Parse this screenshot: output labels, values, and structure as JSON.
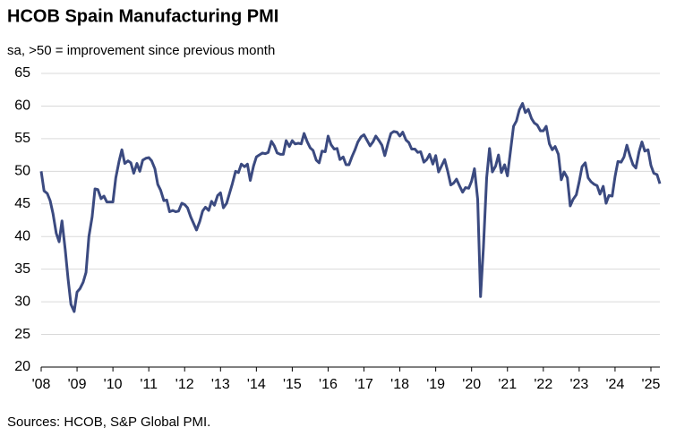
{
  "chart_data": {
    "type": "line",
    "title": "HCOB Spain Manufacturing PMI",
    "subtitle": "sa, >50 = improvement since previous month",
    "source": "Sources: HCOB, S&P Global PMI.",
    "color": "#3b4a80",
    "grid": true,
    "ylim": [
      20,
      65
    ],
    "yticks": [
      20,
      25,
      30,
      35,
      40,
      45,
      50,
      55,
      60,
      65
    ],
    "xlim": [
      2008,
      2025.25
    ],
    "xticks": [
      {
        "value": 2008,
        "label": "'08"
      },
      {
        "value": 2009,
        "label": "'09"
      },
      {
        "value": 2010,
        "label": "'10"
      },
      {
        "value": 2011,
        "label": "'11"
      },
      {
        "value": 2012,
        "label": "'12"
      },
      {
        "value": 2013,
        "label": "'13"
      },
      {
        "value": 2014,
        "label": "'14"
      },
      {
        "value": 2015,
        "label": "'15"
      },
      {
        "value": 2016,
        "label": "'16"
      },
      {
        "value": 2017,
        "label": "'17"
      },
      {
        "value": 2018,
        "label": "'18"
      },
      {
        "value": 2019,
        "label": "'19"
      },
      {
        "value": 2020,
        "label": "'20"
      },
      {
        "value": 2021,
        "label": "'21"
      },
      {
        "value": 2022,
        "label": "'22"
      },
      {
        "value": 2023,
        "label": "'23"
      },
      {
        "value": 2024,
        "label": "'24"
      },
      {
        "value": 2025,
        "label": "'25"
      }
    ],
    "x": [
      2008,
      2008.08,
      2008.17,
      2008.25,
      2008.33,
      2008.42,
      2008.5,
      2008.58,
      2008.67,
      2008.75,
      2008.83,
      2008.92,
      2009,
      2009.08,
      2009.17,
      2009.25,
      2009.33,
      2009.42,
      2009.5,
      2009.58,
      2009.67,
      2009.75,
      2009.83,
      2009.92,
      2010,
      2010.08,
      2010.17,
      2010.25,
      2010.33,
      2010.42,
      2010.5,
      2010.58,
      2010.67,
      2010.75,
      2010.83,
      2010.92,
      2011,
      2011.08,
      2011.17,
      2011.25,
      2011.33,
      2011.42,
      2011.5,
      2011.58,
      2011.67,
      2011.75,
      2011.83,
      2011.92,
      2012,
      2012.08,
      2012.17,
      2012.25,
      2012.33,
      2012.42,
      2012.5,
      2012.58,
      2012.67,
      2012.75,
      2012.83,
      2012.92,
      2013,
      2013.08,
      2013.17,
      2013.25,
      2013.33,
      2013.42,
      2013.5,
      2013.58,
      2013.67,
      2013.75,
      2013.83,
      2013.92,
      2014,
      2014.08,
      2014.17,
      2014.25,
      2014.33,
      2014.42,
      2014.5,
      2014.58,
      2014.67,
      2014.75,
      2014.83,
      2014.92,
      2015,
      2015.08,
      2015.17,
      2015.25,
      2015.33,
      2015.42,
      2015.5,
      2015.58,
      2015.67,
      2015.75,
      2015.83,
      2015.92,
      2016,
      2016.08,
      2016.17,
      2016.25,
      2016.33,
      2016.42,
      2016.5,
      2016.58,
      2016.67,
      2016.75,
      2016.83,
      2016.92,
      2017,
      2017.08,
      2017.17,
      2017.25,
      2017.33,
      2017.42,
      2017.5,
      2017.58,
      2017.67,
      2017.75,
      2017.83,
      2017.92,
      2018,
      2018.08,
      2018.17,
      2018.25,
      2018.33,
      2018.42,
      2018.5,
      2018.58,
      2018.67,
      2018.75,
      2018.83,
      2018.92,
      2019,
      2019.08,
      2019.17,
      2019.25,
      2019.33,
      2019.42,
      2019.5,
      2019.58,
      2019.67,
      2019.75,
      2019.83,
      2019.92,
      2020,
      2020.08,
      2020.17,
      2020.25,
      2020.33,
      2020.42,
      2020.5,
      2020.58,
      2020.67,
      2020.75,
      2020.83,
      2020.92,
      2021,
      2021.08,
      2021.17,
      2021.25,
      2021.33,
      2021.42,
      2021.5,
      2021.58,
      2021.67,
      2021.75,
      2021.83,
      2021.92,
      2022,
      2022.08,
      2022.17,
      2022.25,
      2022.33,
      2022.42,
      2022.5,
      2022.58,
      2022.67,
      2022.75,
      2022.83,
      2022.92,
      2023,
      2023.08,
      2023.17,
      2023.25,
      2023.33,
      2023.42,
      2023.5,
      2023.58,
      2023.67,
      2023.75,
      2023.83,
      2023.92,
      2024,
      2024.08,
      2024.17,
      2024.25,
      2024.33,
      2024.42,
      2024.5,
      2024.58,
      2024.67,
      2024.75,
      2024.83,
      2024.92,
      2025,
      2025.08,
      2025.17,
      2025.25
    ],
    "values": [
      50.0,
      47.0,
      46.6,
      45.5,
      43.5,
      40.5,
      39.2,
      42.4,
      38.0,
      33.5,
      29.6,
      28.5,
      31.5,
      32.0,
      33.0,
      34.5,
      40.0,
      43.0,
      47.3,
      47.2,
      45.8,
      46.2,
      45.3,
      45.3,
      45.3,
      49.0,
      51.5,
      53.3,
      51.2,
      51.6,
      51.3,
      49.7,
      51.2,
      50.0,
      51.7,
      52.0,
      52.1,
      51.6,
      50.4,
      48.0,
      47.1,
      45.5,
      45.6,
      43.8,
      44.0,
      43.8,
      43.9,
      45.1,
      44.9,
      44.4,
      43.0,
      42.0,
      41.0,
      42.3,
      43.9,
      44.5,
      44.0,
      45.4,
      44.8,
      46.3,
      46.7,
      44.4,
      45.1,
      46.6,
      48.1,
      50.0,
      49.8,
      51.1,
      50.7,
      51.1,
      48.6,
      50.8,
      52.2,
      52.5,
      52.8,
      52.7,
      52.9,
      54.6,
      53.9,
      52.8,
      52.6,
      52.6,
      54.7,
      53.8,
      54.7,
      54.2,
      54.3,
      54.2,
      55.8,
      54.5,
      53.6,
      53.2,
      51.7,
      51.3,
      53.1,
      53.0,
      55.4,
      54.1,
      53.4,
      53.5,
      51.8,
      52.2,
      51.0,
      51.0,
      52.3,
      53.3,
      54.5,
      55.3,
      55.6,
      54.8,
      53.9,
      54.5,
      55.4,
      54.7,
      54.0,
      52.4,
      54.3,
      55.8,
      56.1,
      56.0,
      55.4,
      56.0,
      54.8,
      54.4,
      53.4,
      53.4,
      52.9,
      53.0,
      51.4,
      51.8,
      52.6,
      51.1,
      52.4,
      49.9,
      50.9,
      51.8,
      50.1,
      47.9,
      48.2,
      48.8,
      47.7,
      46.8,
      47.5,
      47.4,
      48.5,
      50.4,
      45.7,
      30.8,
      38.3,
      49.0,
      53.5,
      49.9,
      50.8,
      52.5,
      49.8,
      51.0,
      49.3,
      52.9,
      56.9,
      57.7,
      59.4,
      60.4,
      59.0,
      59.5,
      58.1,
      57.4,
      57.1,
      56.2,
      56.2,
      56.9,
      54.2,
      53.3,
      53.8,
      52.6,
      48.7,
      49.9,
      49.0,
      44.7,
      45.7,
      46.4,
      48.4,
      50.7,
      51.3,
      49.0,
      48.4,
      48.0,
      47.8,
      46.5,
      47.7,
      45.1,
      46.3,
      46.2,
      49.2,
      51.5,
      51.4,
      52.2,
      54.0,
      52.3,
      51.0,
      50.5,
      53.0,
      54.5,
      53.1,
      53.3,
      50.9,
      49.7,
      49.5,
      48.1
    ]
  }
}
